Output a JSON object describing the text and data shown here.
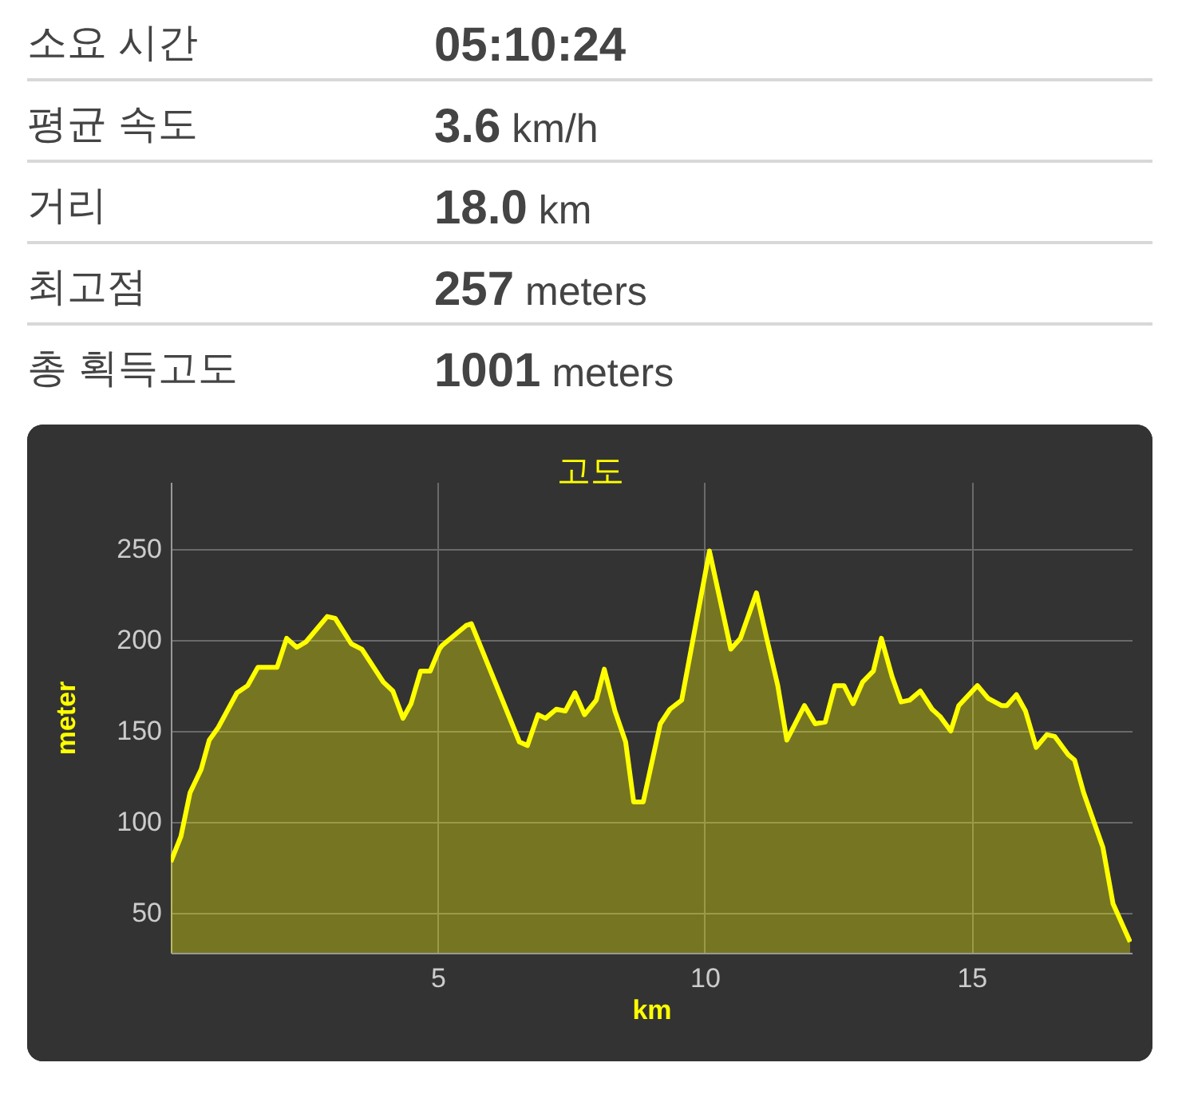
{
  "chart_data": [
    {
      "type": "other",
      "annotations": [
        "소요 시간",
        "05:10:24",
        "평균 속도",
        "3.6 km/h",
        "거리",
        "18.0 km",
        "최고점",
        "257 meters",
        "총 획득고도",
        "1001 meters"
      ]
    },
    {
      "type": "area",
      "title": "고도",
      "xlabel": "km",
      "ylabel": "meter",
      "x": [
        0,
        0.19,
        0.36,
        0.57,
        0.72,
        0.89,
        1.24,
        1.44,
        1.63,
        1.99,
        2.17,
        2.36,
        2.53,
        2.93,
        3.08,
        3.38,
        3.58,
        3.98,
        4.16,
        4.35,
        4.5,
        4.68,
        4.86,
        5.03,
        5.08,
        5.53,
        5.63,
        6.53,
        6.68,
        6.88,
        7.02,
        7.22,
        7.39,
        7.57,
        7.75,
        7.97,
        8.12,
        8.32,
        8.52,
        8.67,
        8.85,
        9.17,
        9.35,
        9.57,
        10.09,
        10.49,
        10.67,
        10.97,
        11.17,
        11.37,
        11.54,
        11.87,
        12.07,
        12.26,
        12.44,
        12.61,
        12.78,
        12.96,
        13.16,
        13.31,
        13.51,
        13.68,
        13.84,
        14.04,
        14.26,
        14.41,
        14.61,
        14.76,
        15.11,
        15.31,
        15.56,
        15.66,
        15.84,
        16.01,
        16.21,
        16.41,
        16.56,
        16.81,
        16.93,
        17.1,
        17.46,
        17.65,
        17.97
      ],
      "series": [
        {
          "color": "#ffff00",
          "values": [
            78,
            92,
            116,
            129,
            145,
            152,
            171,
            175,
            185,
            185,
            201,
            196,
            199,
            213,
            212,
            198,
            195,
            177,
            172,
            157,
            165,
            183,
            183,
            195,
            197,
            208,
            209,
            144,
            142,
            159,
            157,
            162,
            161,
            171,
            159,
            167,
            184,
            161,
            144,
            111,
            111,
            154,
            162,
            167,
            249,
            195,
            201,
            226,
            200,
            175,
            145,
            164,
            154,
            155,
            175,
            175,
            165,
            177,
            183,
            201,
            180,
            166,
            167,
            172,
            162,
            158,
            150,
            164,
            175,
            168,
            164,
            164,
            170,
            161,
            141,
            148,
            147,
            137,
            134,
            116,
            86,
            55,
            34
          ]
        }
      ],
      "xlim": [
        0,
        18
      ],
      "ylim": [
        28,
        287
      ],
      "xticks": [
        5,
        10,
        15
      ],
      "yticks": [
        50,
        100,
        150,
        200,
        250
      ],
      "grid": true
    }
  ]
}
